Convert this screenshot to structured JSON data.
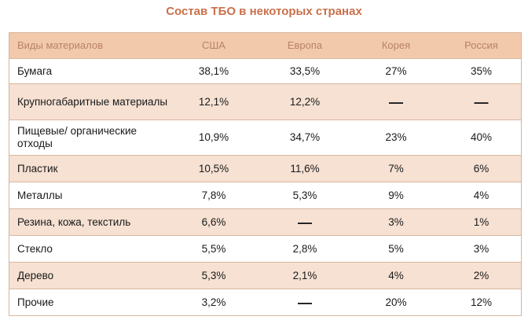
{
  "title": "Состав ТБО в некоторых странах",
  "table": {
    "headers": [
      "Виды материалов",
      "США",
      "Европа",
      "Корея",
      "Россия"
    ],
    "rows": [
      {
        "material": "Бумага",
        "usa": "38,1%",
        "europe": "33,5%",
        "korea": "27%",
        "russia": "35%"
      },
      {
        "material": "Крупногабаритные материалы",
        "usa": "12,1%",
        "europe": "12,2%",
        "korea": "—",
        "russia": "—"
      },
      {
        "material": "Пищевые/ органические отходы",
        "usa": "10,9%",
        "europe": "34,7%",
        "korea": "23%",
        "russia": "40%"
      },
      {
        "material": "Пластик",
        "usa": "10,5%",
        "europe": "11,6%",
        "korea": "7%",
        "russia": "6%"
      },
      {
        "material": "Металлы",
        "usa": "7,8%",
        "europe": "5,3%",
        "korea": "9%",
        "russia": "4%"
      },
      {
        "material": "Резина, кожа, текстиль",
        "usa": "6,6%",
        "europe": "—",
        "korea": "3%",
        "russia": "1%"
      },
      {
        "material": "Стекло",
        "usa": "5,5%",
        "europe": "2,8%",
        "korea": "5%",
        "russia": "3%"
      },
      {
        "material": "Дерево",
        "usa": "5,3%",
        "europe": "2,1%",
        "korea": "4%",
        "russia": "2%"
      },
      {
        "material": "Прочие",
        "usa": "3,2%",
        "europe": "—",
        "korea": "20%",
        "russia": "12%"
      }
    ]
  },
  "colors": {
    "title": "#c9704a",
    "header_bg": "#f3c9ac",
    "header_text": "#b78367",
    "row_alt_bg": "#f6e1d3",
    "border": "#d9b89f"
  }
}
